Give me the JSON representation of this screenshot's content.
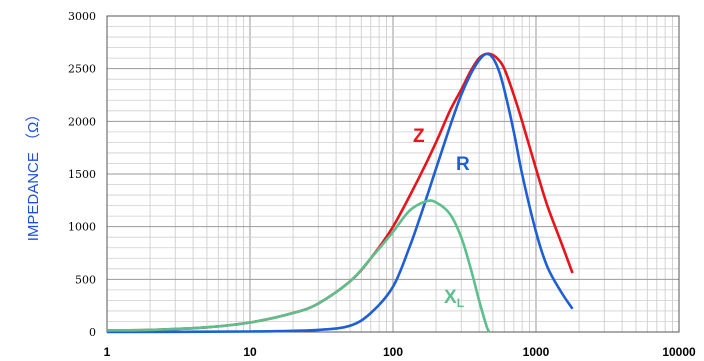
{
  "chart_data": {
    "type": "line",
    "x_scale": "log",
    "xlim": [
      1,
      10000
    ],
    "ylim": [
      0,
      3000
    ],
    "grid": true,
    "xlabel": "",
    "ylabel": "IMPEDANCE （Ω）",
    "x_tick_labels": [
      "1",
      "10",
      "100",
      "1000",
      "10000"
    ],
    "y_tick_labels": [
      "0",
      "500",
      "1000",
      "1500",
      "2000",
      "2500",
      "3000"
    ],
    "series": [
      {
        "name": "Z",
        "color": "#e8141b",
        "x": [
          1,
          2,
          5,
          10,
          20,
          30,
          50,
          70,
          100,
          150,
          200,
          250,
          300,
          350,
          400,
          450,
          500,
          550,
          600,
          700,
          800,
          1000,
          1200,
          1500,
          1800
        ],
        "y": [
          15,
          20,
          45,
          90,
          180,
          270,
          480,
          700,
          1000,
          1450,
          1800,
          2100,
          2300,
          2480,
          2600,
          2640,
          2630,
          2580,
          2500,
          2250,
          2000,
          1550,
          1200,
          850,
          560
        ]
      },
      {
        "name": "R",
        "color": "#1f5fd6",
        "x": [
          1,
          10,
          30,
          50,
          70,
          100,
          130,
          160,
          200,
          250,
          300,
          350,
          400,
          450,
          500,
          550,
          600,
          700,
          800,
          1000,
          1200,
          1500,
          1800
        ],
        "y": [
          0,
          5,
          20,
          60,
          180,
          430,
          800,
          1150,
          1550,
          1950,
          2250,
          2450,
          2580,
          2640,
          2600,
          2480,
          2300,
          1900,
          1500,
          950,
          620,
          380,
          220
        ]
      },
      {
        "name": "XL",
        "color": "#5cbf8c",
        "x": [
          1,
          2,
          5,
          10,
          20,
          30,
          50,
          70,
          100,
          130,
          170,
          200,
          250,
          300,
          350,
          400,
          450,
          470
        ],
        "y": [
          15,
          20,
          45,
          90,
          180,
          270,
          480,
          700,
          950,
          1150,
          1240,
          1230,
          1120,
          900,
          600,
          300,
          60,
          0
        ]
      }
    ],
    "annotations": [
      {
        "text": "Z",
        "series": 0
      },
      {
        "text": "R",
        "series": 1
      },
      {
        "text": "X",
        "subscript": "L",
        "series": 2
      }
    ]
  }
}
